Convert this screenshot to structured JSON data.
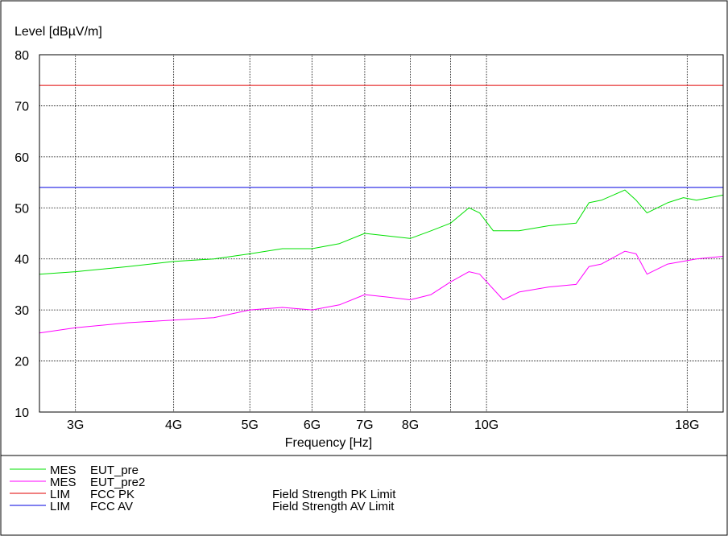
{
  "chart_data": {
    "type": "line",
    "ylabel": "Level [dBµV/m]",
    "xlabel": "Frequency [Hz]",
    "x_scale": "log",
    "xlim": [
      2700000000,
      20000000000
    ],
    "ylim": [
      10,
      80
    ],
    "grid": true,
    "y_ticks": [
      10,
      20,
      30,
      40,
      50,
      60,
      70,
      80
    ],
    "x_ticks": [
      {
        "value": 3000000000,
        "label": "3G"
      },
      {
        "value": 4000000000,
        "label": "4G"
      },
      {
        "value": 5000000000,
        "label": "5G"
      },
      {
        "value": 6000000000,
        "label": "6G"
      },
      {
        "value": 7000000000,
        "label": "7G"
      },
      {
        "value": 8000000000,
        "label": "8G"
      },
      {
        "value": 9000000000,
        "label": ""
      },
      {
        "value": 10000000000,
        "label": "10G"
      },
      {
        "value": 18000000000,
        "label": "18G"
      }
    ],
    "series": [
      {
        "name": "MES EUT_pre",
        "color": "#00e000",
        "x": [
          2700000000,
          3000000000,
          3500000000,
          4000000000,
          4500000000,
          5000000000,
          5500000000,
          6000000000,
          6500000000,
          7000000000,
          7500000000,
          8000000000,
          8500000000,
          9000000000,
          9500000000,
          9800000000,
          10200000000,
          11000000000,
          12000000000,
          13000000000,
          13500000000,
          14000000000,
          15000000000,
          15500000000,
          16000000000,
          17000000000,
          17800000000,
          18500000000,
          20000000000
        ],
        "y": [
          37,
          37.5,
          38.5,
          39.5,
          40,
          41,
          42,
          42,
          43,
          45,
          44.5,
          44,
          45.5,
          47,
          50,
          49,
          45.5,
          45.5,
          46.5,
          47,
          51,
          51.5,
          53.5,
          51.5,
          49,
          51,
          52,
          51.5,
          52.5
        ]
      },
      {
        "name": "MES EUT_pre2",
        "color": "#ff00ff",
        "x": [
          2700000000,
          3000000000,
          3500000000,
          4000000000,
          4500000000,
          5000000000,
          5500000000,
          6000000000,
          6500000000,
          7000000000,
          7500000000,
          8000000000,
          8500000000,
          9000000000,
          9500000000,
          9800000000,
          10500000000,
          11000000000,
          12000000000,
          13000000000,
          13500000000,
          14000000000,
          15000000000,
          15500000000,
          16000000000,
          17000000000,
          18500000000,
          20000000000
        ],
        "y": [
          25.5,
          26.5,
          27.5,
          28,
          28.5,
          30,
          30.5,
          30,
          31,
          33,
          32.5,
          32,
          33,
          35.5,
          37.5,
          37,
          32,
          33.5,
          34.5,
          35,
          38.5,
          39,
          41.5,
          41,
          37,
          39,
          40,
          40.5
        ]
      },
      {
        "name": "LIM FCC PK",
        "color": "#e00000",
        "x": [
          2700000000,
          20000000000
        ],
        "y": [
          74,
          74
        ]
      },
      {
        "name": "LIM FCC AV",
        "color": "#0000e0",
        "x": [
          2700000000,
          20000000000
        ],
        "y": [
          54,
          54
        ]
      }
    ],
    "legend": {
      "placement": "bottom",
      "entries": [
        {
          "type": "MES",
          "name": "EUT_pre",
          "description": "",
          "color": "#00e000"
        },
        {
          "type": "MES",
          "name": "EUT_pre2",
          "description": "",
          "color": "#ff00ff"
        },
        {
          "type": "LIM",
          "name": "FCC PK",
          "description": "Field Strength PK Limit",
          "color": "#e00000"
        },
        {
          "type": "LIM",
          "name": "FCC AV",
          "description": "Field Strength AV Limit",
          "color": "#0000e0"
        }
      ]
    }
  }
}
